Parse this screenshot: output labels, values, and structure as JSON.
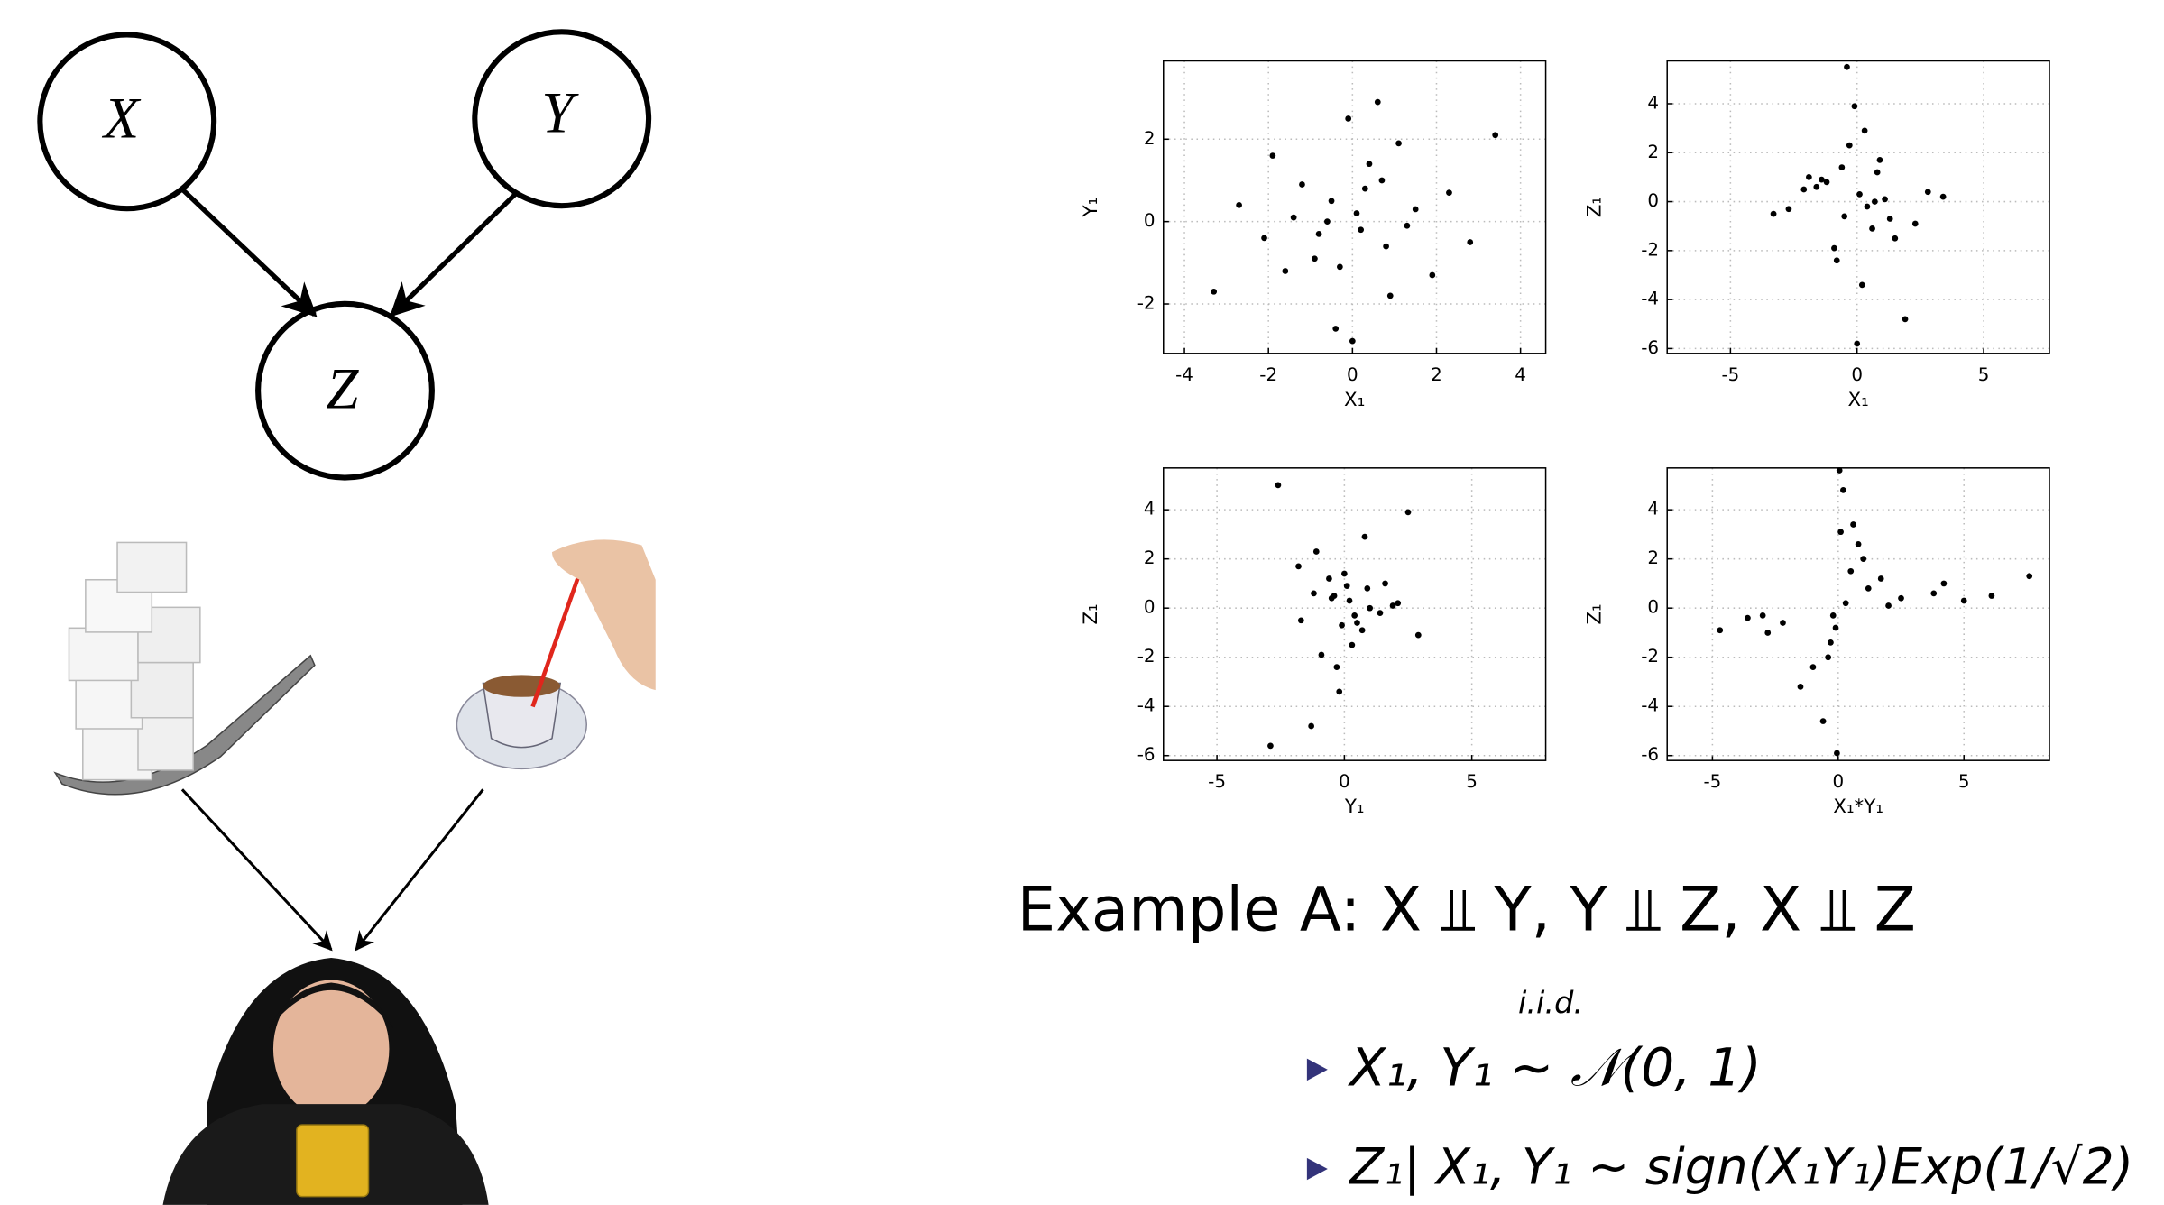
{
  "diagram": {
    "nodes": [
      {
        "label": "X"
      },
      {
        "label": "Y"
      },
      {
        "label": "Z"
      }
    ]
  },
  "chart_data": [
    {
      "type": "scatter",
      "xlabel": "X₁",
      "ylabel": "Y₁",
      "color": "#000000",
      "grid": true,
      "xlim": [
        -4.5,
        4.6
      ],
      "ylim": [
        -3.2,
        3.9
      ],
      "xticks": [
        -4,
        -2,
        0,
        2,
        4
      ],
      "yticks": [
        -2,
        0,
        2
      ],
      "x": [
        0.1,
        -0.5,
        0.8,
        -1.2,
        1.5,
        -0.3,
        0.4,
        -2.1,
        2.3,
        0.9,
        -0.8,
        1.1,
        -1.6,
        0.2,
        -0.1,
        2.8,
        -2.7,
        0.6,
        -0.4,
        1.9,
        -1.9,
        3.4,
        -3.3,
        0.3,
        -0.9,
        1.3,
        -1.4,
        0.0,
        0.7,
        -0.6
      ],
      "y": [
        0.2,
        0.5,
        -0.6,
        0.9,
        0.3,
        -1.1,
        1.4,
        -0.4,
        0.7,
        -1.8,
        -0.3,
        1.9,
        -1.2,
        -0.2,
        2.5,
        -0.5,
        0.4,
        2.9,
        -2.6,
        -1.3,
        1.6,
        2.1,
        -1.7,
        0.8,
        -0.9,
        -0.1,
        0.1,
        -2.9,
        1.0,
        0.0
      ]
    },
    {
      "type": "scatter",
      "xlabel": "X₁",
      "ylabel": "Z₁",
      "color": "#000000",
      "grid": true,
      "xlim": [
        -7.5,
        7.6
      ],
      "ylim": [
        -6.2,
        5.75
      ],
      "xticks": [
        -5,
        0,
        5
      ],
      "yticks": [
        -6,
        -4,
        -2,
        0,
        2,
        4
      ],
      "x": [
        0.1,
        -0.5,
        0.8,
        -1.2,
        1.5,
        -0.3,
        0.4,
        -2.1,
        2.3,
        0.9,
        -0.8,
        1.1,
        -1.6,
        0.2,
        -0.1,
        2.8,
        -2.7,
        0.6,
        -0.4,
        1.9,
        -1.9,
        3.4,
        -3.3,
        0.3,
        -0.9,
        1.3,
        -1.4,
        0.0,
        0.7,
        -0.6
      ],
      "y": [
        0.3,
        -0.6,
        1.2,
        0.8,
        -1.5,
        2.3,
        -0.2,
        0.5,
        -0.9,
        1.7,
        -2.4,
        0.1,
        0.6,
        -3.4,
        3.9,
        0.4,
        -0.3,
        -1.1,
        5.5,
        -4.8,
        1.0,
        0.2,
        -0.5,
        2.9,
        -1.9,
        -0.7,
        0.9,
        -5.8,
        0.0,
        1.4
      ]
    },
    {
      "type": "scatter",
      "xlabel": "Y₁",
      "ylabel": "Z₁",
      "color": "#000000",
      "grid": true,
      "xlim": [
        -7.1,
        7.9
      ],
      "ylim": [
        -6.2,
        5.7
      ],
      "xticks": [
        -5,
        0,
        5
      ],
      "yticks": [
        -6,
        -4,
        -2,
        0,
        2,
        4
      ],
      "x": [
        0.2,
        0.5,
        -0.6,
        0.9,
        0.3,
        -1.1,
        1.4,
        -0.4,
        0.7,
        -1.8,
        -0.3,
        1.9,
        -1.2,
        -0.2,
        2.5,
        -0.5,
        0.4,
        2.9,
        -2.6,
        -1.3,
        1.6,
        2.1,
        -1.7,
        0.8,
        -0.9,
        -0.1,
        0.1,
        -2.9,
        1.0,
        0.0
      ],
      "y": [
        0.3,
        -0.6,
        1.2,
        0.8,
        -1.5,
        2.3,
        -0.2,
        0.5,
        -0.9,
        1.7,
        -2.4,
        0.1,
        0.6,
        -3.4,
        3.9,
        0.4,
        -0.3,
        -1.1,
        5.0,
        -4.8,
        1.0,
        0.2,
        -0.5,
        2.9,
        -1.9,
        -0.7,
        0.9,
        -5.6,
        0.0,
        1.4
      ]
    },
    {
      "type": "scatter",
      "xlabel": "X₁*Y₁",
      "ylabel": "Z₁",
      "color": "#000000",
      "grid": true,
      "xlim": [
        -6.8,
        8.4
      ],
      "ylim": [
        -6.2,
        5.7
      ],
      "xticks": [
        -5,
        0,
        5
      ],
      "yticks": [
        -6,
        -4,
        -2,
        0,
        2,
        4
      ],
      "x": [
        0.5,
        1.2,
        2.5,
        3.8,
        5.0,
        6.1,
        7.6,
        0.2,
        0.8,
        1.7,
        0.1,
        -0.3,
        -1.0,
        -2.2,
        -3.6,
        -4.7,
        -0.6,
        -1.5,
        -0.1,
        -0.4,
        0.3,
        -0.2,
        1.0,
        -2.8,
        2.0,
        4.2,
        -3.0,
        0.05,
        -0.05,
        0.6
      ],
      "y": [
        1.5,
        0.8,
        0.4,
        0.6,
        0.3,
        0.5,
        1.3,
        4.8,
        2.6,
        1.2,
        3.1,
        -1.4,
        -2.4,
        -0.6,
        -0.4,
        -0.9,
        -4.6,
        -3.2,
        -0.8,
        -2.0,
        0.2,
        -0.3,
        2.0,
        -1.0,
        0.1,
        1.0,
        -0.3,
        5.6,
        -5.9,
        3.4
      ]
    }
  ],
  "example": {
    "title": "Example A: X ⫫ Y, Y ⫫ Z, X ⫫ Z",
    "bullets": [
      {
        "text": "X₁, Y₁ ~ 𝒩(0, 1)",
        "annotation": "i.i.d."
      },
      {
        "text": "Z₁| X₁, Y₁ ~ sign(X₁Y₁)Exp(1/√2)"
      }
    ]
  }
}
